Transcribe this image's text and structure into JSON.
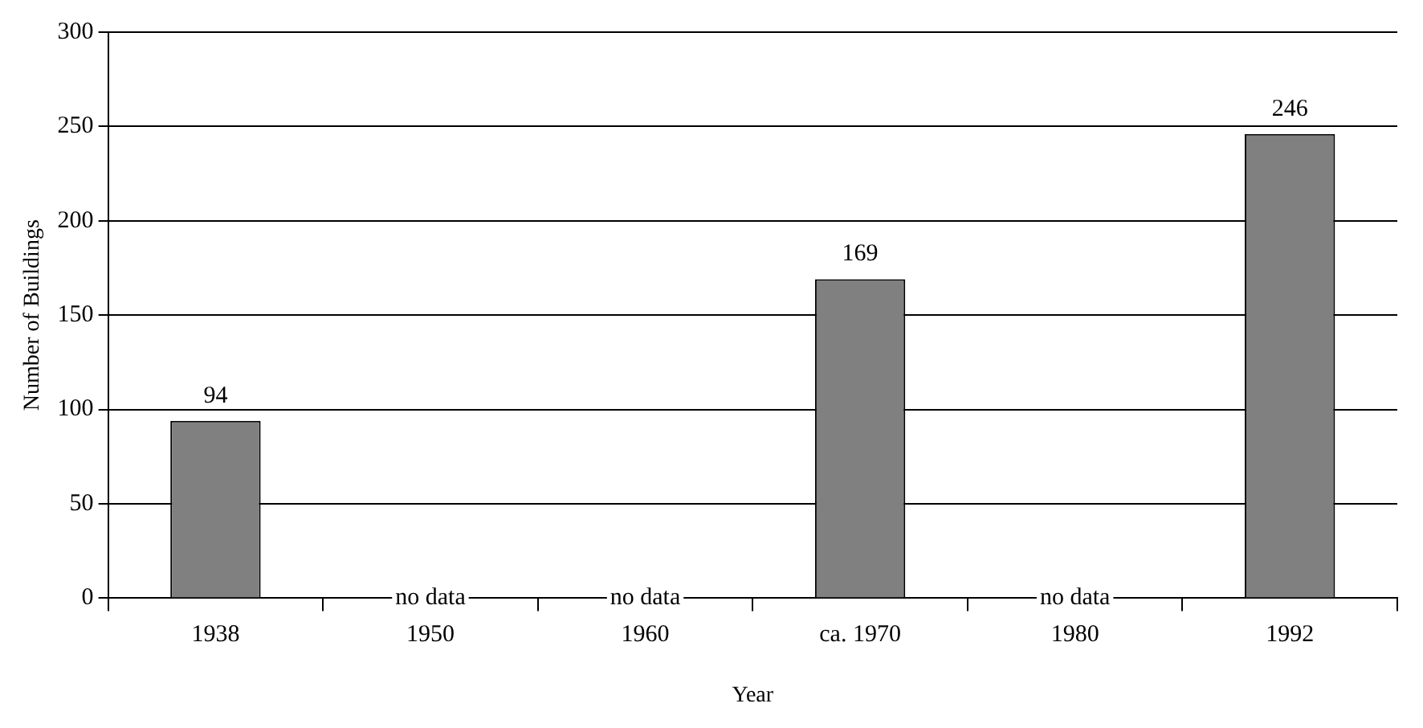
{
  "chart_data": {
    "type": "bar",
    "xlabel": "Year",
    "ylabel": "Number of Buildings",
    "categories": [
      "1938",
      "1950",
      "1960",
      "ca. 1970",
      "1980",
      "1992"
    ],
    "values": [
      94,
      null,
      null,
      169,
      null,
      246
    ],
    "value_labels": [
      "94",
      "no data",
      "no data",
      "169",
      "no data",
      "246"
    ],
    "color": "#808080",
    "ylim": [
      0,
      300
    ],
    "yticks": [
      0,
      50,
      100,
      150,
      200,
      250,
      300
    ],
    "grid": "y",
    "legend": false
  }
}
